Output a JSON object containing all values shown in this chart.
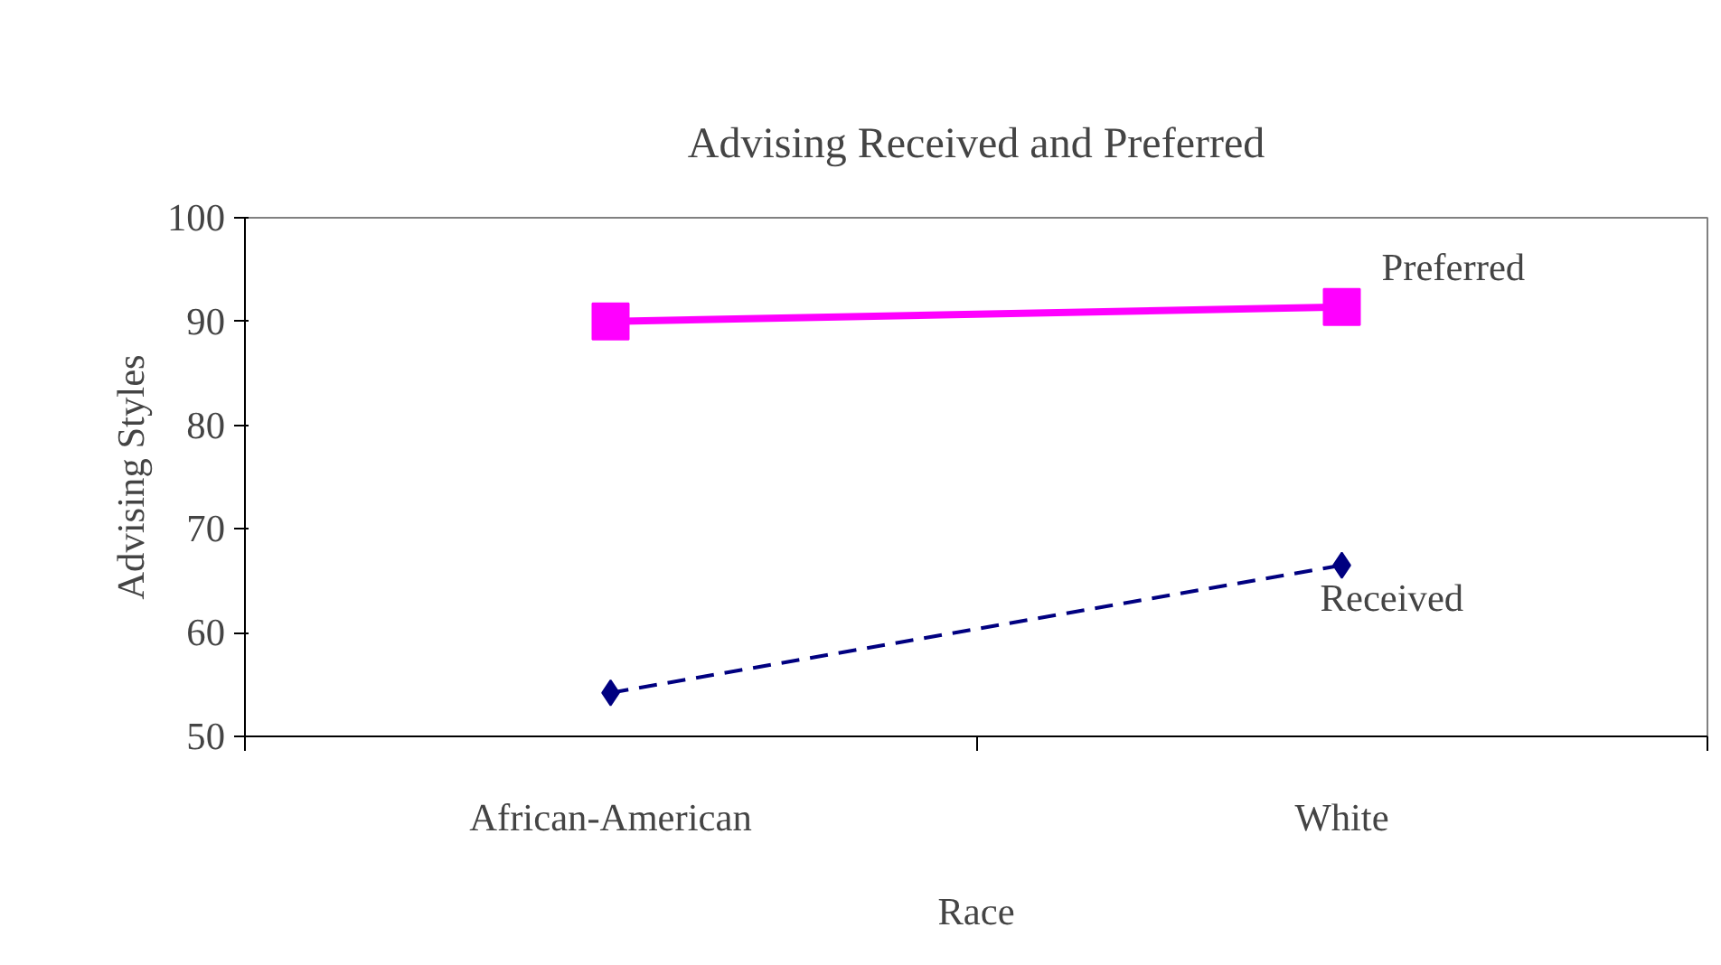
{
  "chart_data": {
    "type": "line",
    "title": "Advising Received and Preferred",
    "xlabel": "Race",
    "ylabel": "Advising Styles",
    "categories": [
      "African-American",
      "White"
    ],
    "series": [
      {
        "name": "Preferred",
        "color": "#ff00ff",
        "values": [
          90.0,
          91.4
        ],
        "marker": "square",
        "line_style": "solid"
      },
      {
        "name": "Received",
        "color": "#000080",
        "values": [
          54.2,
          66.5
        ],
        "marker": "diamond",
        "line_style": "dashed"
      }
    ],
    "ylim": [
      50,
      100
    ],
    "yticks": [
      50,
      60,
      70,
      80,
      90,
      100
    ],
    "grid": false
  }
}
